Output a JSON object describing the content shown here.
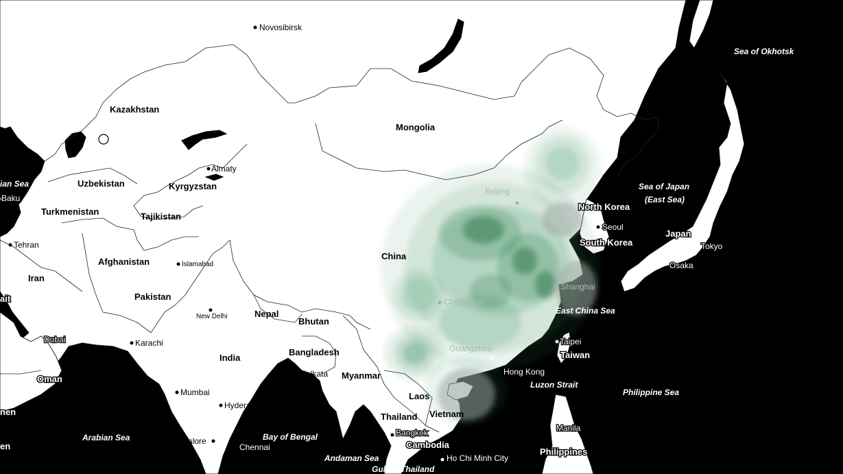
{
  "map": {
    "countries": [
      "Kazakhstan",
      "Mongolia",
      "Uzbekistan",
      "Kyrgyzstan",
      "Turkmenistan",
      "Tajikistan",
      "Afghanistan",
      "Iran",
      "Pakistan",
      "India",
      "Nepal",
      "Bhutan",
      "Bangladesh",
      "Myanmar",
      "China",
      "North Korea",
      "South Korea",
      "Japan",
      "Thailand",
      "Laos",
      "Vietnam",
      "Cambodia",
      "Taiwan",
      "Philippines",
      "Oman"
    ],
    "cities": [
      "Novosibirsk",
      "Almaty",
      "Baku",
      "Tehran",
      "Islamabad",
      "New Delhi",
      "Karachi",
      "Dubai",
      "Mumbai",
      "Hyderabad",
      "Bangalore",
      "Chennai",
      "Kolkata",
      "Beijing",
      "Chongqing",
      "Guangzhou",
      "Shanghai",
      "Seoul",
      "Tokyo",
      "Osaka",
      "Hong Kong",
      "Taipei",
      "Bangkok",
      "Ho Chi Minh City",
      "Manila"
    ],
    "seas": [
      "Sea of Okhotsk",
      "Sea of Japan",
      "(East Sea)",
      "East China Sea",
      "Luzon Strait",
      "Philippine Sea",
      "Arabian Sea",
      "Bay of Bengal",
      "Andaman Sea",
      "Gulf of Thailand"
    ],
    "clipped_labels": [
      "ian Sea",
      "ait",
      "nen",
      "en"
    ],
    "heatmap_color": "#1a6b3c",
    "land_color": "#ffffff",
    "water_color": "#000000"
  }
}
